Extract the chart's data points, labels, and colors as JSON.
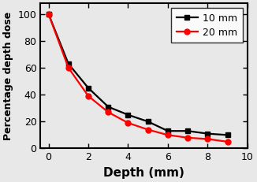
{
  "series": [
    {
      "label": "10 mm",
      "color": "#000000",
      "marker": "s",
      "x": [
        0,
        1,
        2,
        3,
        4,
        5,
        6,
        7,
        8,
        9
      ],
      "y": [
        100,
        63,
        45,
        31,
        25,
        20,
        13,
        13,
        11,
        10
      ]
    },
    {
      "label": "20 mm",
      "color": "#ff0000",
      "marker": "o",
      "x": [
        0,
        1,
        2,
        3,
        4,
        5,
        6,
        7,
        8,
        9
      ],
      "y": [
        100,
        60,
        39,
        27,
        19,
        14,
        10,
        8,
        7,
        5
      ]
    }
  ],
  "xlabel": "Depth (mm)",
  "ylabel": "Percentage depth dose",
  "xlim": [
    -0.4,
    10
  ],
  "ylim": [
    0,
    108
  ],
  "xticks": [
    0,
    2,
    4,
    6,
    8,
    10
  ],
  "yticks": [
    0,
    20,
    40,
    60,
    80,
    100
  ],
  "legend_loc": "upper right",
  "linewidth": 1.6,
  "markersize": 5,
  "background_color": "#e8e8e8",
  "plot_bg_color": "#e8e8e8",
  "xlabel_fontsize": 11,
  "ylabel_fontsize": 9,
  "tick_fontsize": 9,
  "legend_fontsize": 9
}
